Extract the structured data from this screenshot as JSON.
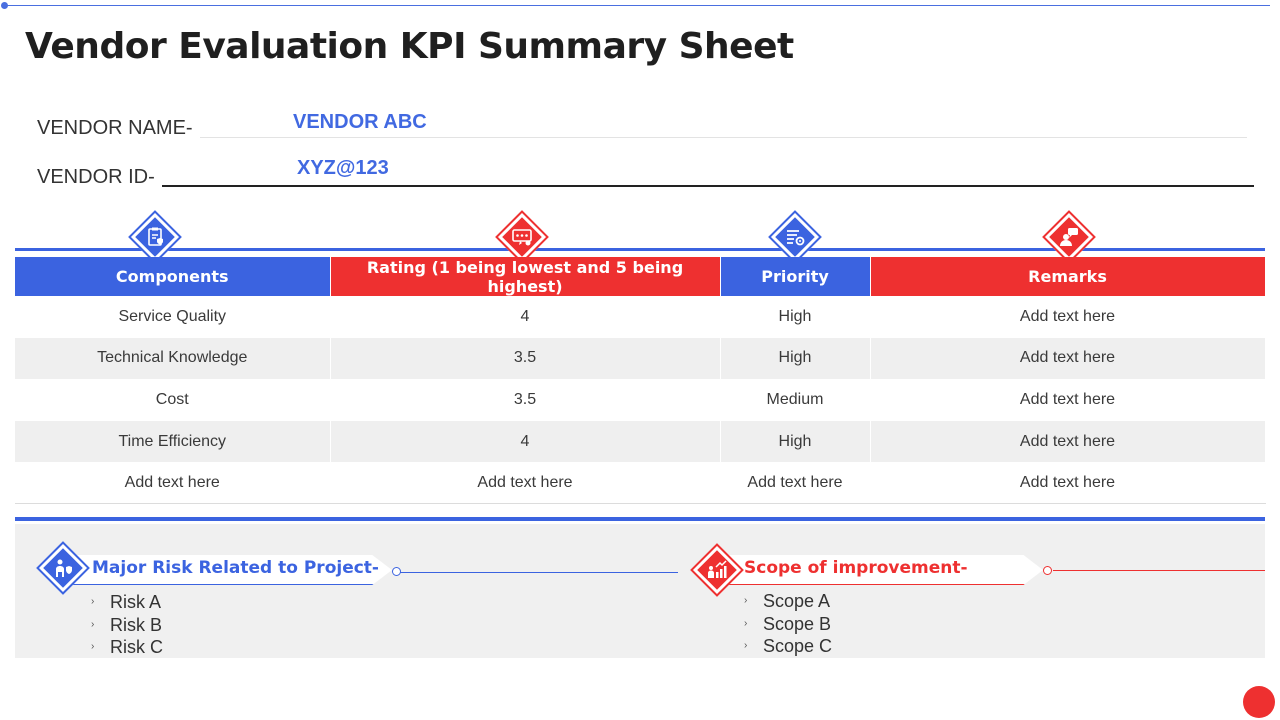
{
  "title": "Vendor Evaluation KPI Summary Sheet",
  "vendor": {
    "name_label": "VENDOR  NAME-",
    "name_value": "VENDOR  ABC",
    "id_label": "VENDOR  ID-",
    "id_value": "XYZ@123"
  },
  "table": {
    "headers": [
      "Components",
      "Rating (1 being lowest and 5 being highest)",
      "Priority",
      "Remarks"
    ],
    "header_icons": [
      "clipboard-shield-icon",
      "rating-stars-icon",
      "priority-list-gear-icon",
      "remarks-speech-icon"
    ],
    "rows": [
      [
        "Service Quality",
        "4",
        "High",
        "Add text here"
      ],
      [
        "Technical  Knowledge",
        "3.5",
        "High",
        "Add text here"
      ],
      [
        "Cost",
        "3.5",
        "Medium",
        "Add text here"
      ],
      [
        "Time Efficiency",
        "4",
        "High",
        "Add text here"
      ],
      [
        "Add text here",
        "Add text here",
        "Add text here",
        "Add text here"
      ]
    ]
  },
  "risks": {
    "title": "Major  Risk Related to Project-",
    "icon": "person-shield-icon",
    "items": [
      "Risk A",
      "Risk B",
      "Risk C"
    ]
  },
  "scope": {
    "title": "Scope of improvement-",
    "icon": "growth-chart-people-icon",
    "items": [
      "Scope A",
      "Scope B",
      "Scope C"
    ]
  },
  "colors": {
    "blue": "#3b63e0",
    "red": "#ee3030",
    "value_blue": "#4169e1"
  }
}
